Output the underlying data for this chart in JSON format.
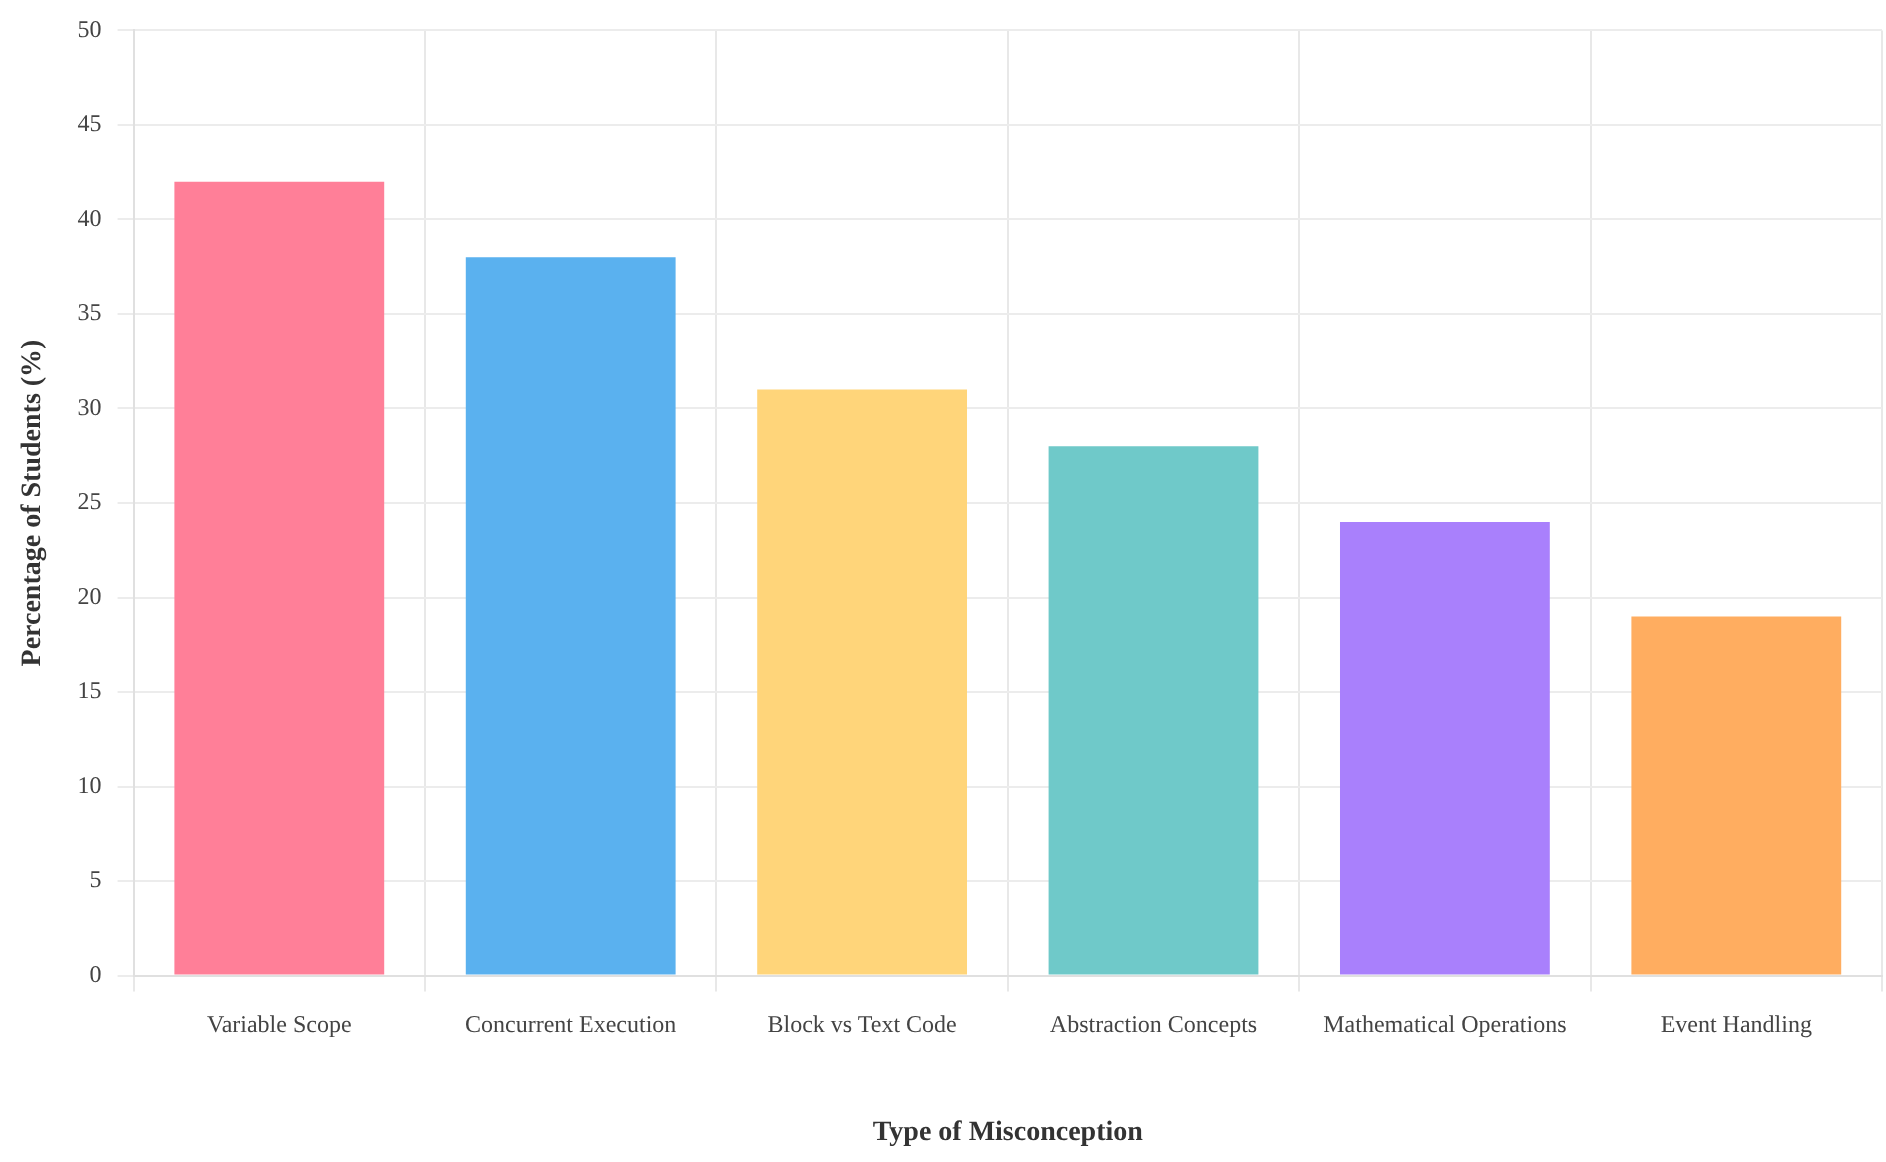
{
  "chart_data": {
    "type": "bar",
    "xlabel": "Type of Misconception",
    "ylabel": "Percentage of Students (%)",
    "categories": [
      "Variable Scope",
      "Concurrent Execution",
      "Block vs Text Code",
      "Abstraction Concepts",
      "Mathematical Operations",
      "Event Handling"
    ],
    "values": [
      42,
      38,
      31,
      28,
      24,
      19
    ],
    "colors": [
      "#ff7f98",
      "#5ab1ef",
      "#ffd57a",
      "#6fc9c9",
      "#a980fc",
      "#ffad60"
    ],
    "ylim": [
      0,
      50
    ],
    "yticks": [
      0,
      5,
      10,
      15,
      20,
      25,
      30,
      35,
      40,
      45,
      50
    ],
    "grid": true,
    "legend": false
  }
}
